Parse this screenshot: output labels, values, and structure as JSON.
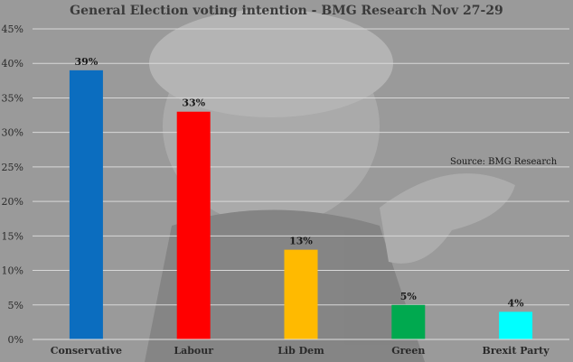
{
  "chart_data": {
    "type": "bar",
    "title": "General Election voting intention - BMG Research Nov 27-29",
    "annotation": "Source: BMG Research",
    "categories": [
      "Conservative",
      "Labour",
      "Lib Dem",
      "Green",
      "Brexit Party"
    ],
    "values": [
      39,
      33,
      13,
      5,
      4
    ],
    "data_labels": [
      "39%",
      "33%",
      "13%",
      "5%",
      "4%"
    ],
    "colors": [
      "#0b6dbf",
      "#ff0000",
      "#ffba00",
      "#00a94f",
      "#00ffff"
    ],
    "ylim": [
      0,
      45
    ],
    "yticks": [
      0,
      5,
      10,
      15,
      20,
      25,
      30,
      35,
      40,
      45
    ],
    "ytick_labels": [
      "0%",
      "5%",
      "10%",
      "15%",
      "20%",
      "25%",
      "30%",
      "35%",
      "40%",
      "45%"
    ],
    "grid": true
  }
}
